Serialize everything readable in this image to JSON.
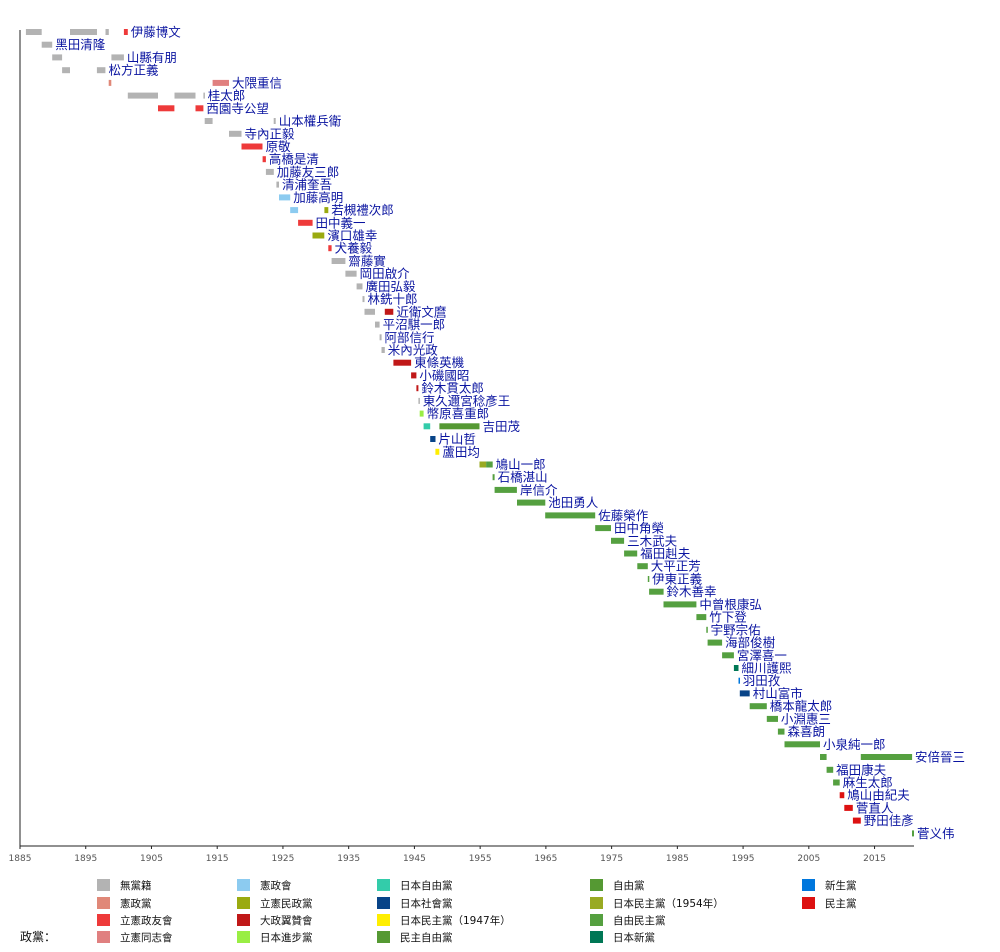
{
  "chart_data": {
    "type": "timeline",
    "x_range": [
      1885,
      2021
    ],
    "x_ticks": [
      "1885",
      "1895",
      "1905",
      "1915",
      "1925",
      "1935",
      "1945",
      "1955",
      "1965",
      "1975",
      "1985",
      "1995",
      "2005",
      "2015"
    ],
    "legend_title": "政黨：",
    "parties": [
      {
        "key": "none",
        "name": "無黨籍",
        "color": "#b3b3b3"
      },
      {
        "key": "kenseito",
        "name": "憲政黨",
        "color": "#e08878"
      },
      {
        "key": "seiyukai",
        "name": "立憲政友會",
        "color": "#ee3a3a"
      },
      {
        "key": "doshikai",
        "name": "立憲同志會",
        "color": "#e08080"
      },
      {
        "key": "kenseikai",
        "name": "憲政會",
        "color": "#8ccbf0"
      },
      {
        "key": "minseito",
        "name": "立憲民政黨",
        "color": "#9aaa10"
      },
      {
        "key": "taisei",
        "name": "大政翼贊會",
        "color": "#c01818"
      },
      {
        "key": "shimpo",
        "name": "日本進步黨",
        "color": "#99ee44"
      },
      {
        "key": "jiyu46",
        "name": "日本自由黨",
        "color": "#33ccaa"
      },
      {
        "key": "shakai",
        "name": "日本社會黨",
        "color": "#084488"
      },
      {
        "key": "minshu47",
        "name": "日本民主黨（1947年）",
        "color": "#ffee00"
      },
      {
        "key": "minjiyu",
        "name": "民主自由黨",
        "color": "#559933"
      },
      {
        "key": "jiyuto",
        "name": "自由黨",
        "color": "#559933"
      },
      {
        "key": "minshu54",
        "name": "日本民主黨（1954年）",
        "color": "#99aa22"
      },
      {
        "key": "ldp",
        "name": "自由民主黨",
        "color": "#55a040"
      },
      {
        "key": "shinto",
        "name": "日本新黨",
        "color": "#007755"
      },
      {
        "key": "shinsei",
        "name": "新生黨",
        "color": "#0077dd"
      },
      {
        "key": "dpj",
        "name": "民主黨",
        "color": "#dd1111"
      }
    ],
    "prime_ministers": [
      {
        "name": "伊藤博文",
        "terms": [
          {
            "start": 1885.9,
            "end": 1888.3,
            "party": "none"
          },
          {
            "start": 1892.6,
            "end": 1896.7,
            "party": "none"
          },
          {
            "start": 1898.0,
            "end": 1898.5,
            "party": "none"
          },
          {
            "start": 1900.8,
            "end": 1901.4,
            "party": "seiyukai"
          }
        ]
      },
      {
        "name": "黑田清隆",
        "terms": [
          {
            "start": 1888.3,
            "end": 1889.9,
            "party": "none"
          }
        ]
      },
      {
        "name": "山縣有朋",
        "terms": [
          {
            "start": 1889.9,
            "end": 1891.4,
            "party": "none"
          },
          {
            "start": 1898.9,
            "end": 1900.8,
            "party": "none"
          }
        ]
      },
      {
        "name": "松方正義",
        "terms": [
          {
            "start": 1891.4,
            "end": 1892.6,
            "party": "none"
          },
          {
            "start": 1896.7,
            "end": 1898.0,
            "party": "none"
          }
        ]
      },
      {
        "name": "大隈重信",
        "terms": [
          {
            "start": 1898.5,
            "end": 1898.9,
            "party": "kenseito"
          },
          {
            "start": 1914.3,
            "end": 1916.8,
            "party": "doshikai"
          }
        ]
      },
      {
        "name": "桂太郎",
        "terms": [
          {
            "start": 1901.4,
            "end": 1906.0,
            "party": "none"
          },
          {
            "start": 1908.5,
            "end": 1911.7,
            "party": "none"
          },
          {
            "start": 1912.9,
            "end": 1913.1,
            "party": "none"
          }
        ]
      },
      {
        "name": "西園寺公望",
        "terms": [
          {
            "start": 1906.0,
            "end": 1908.5,
            "party": "seiyukai"
          },
          {
            "start": 1911.7,
            "end": 1912.9,
            "party": "seiyukai"
          }
        ]
      },
      {
        "name": "山本權兵衛",
        "terms": [
          {
            "start": 1913.1,
            "end": 1914.3,
            "party": "none"
          },
          {
            "start": 1923.6,
            "end": 1923.9,
            "party": "none"
          }
        ]
      },
      {
        "name": "寺內正毅",
        "terms": [
          {
            "start": 1916.8,
            "end": 1918.7,
            "party": "none"
          }
        ]
      },
      {
        "name": "原敬",
        "terms": [
          {
            "start": 1918.7,
            "end": 1921.9,
            "party": "seiyukai"
          }
        ]
      },
      {
        "name": "高橋是清",
        "terms": [
          {
            "start": 1921.9,
            "end": 1922.4,
            "party": "seiyukai"
          }
        ]
      },
      {
        "name": "加藤友三郎",
        "terms": [
          {
            "start": 1922.4,
            "end": 1923.6,
            "party": "none"
          }
        ]
      },
      {
        "name": "清浦奎吾",
        "terms": [
          {
            "start": 1924.0,
            "end": 1924.4,
            "party": "none"
          }
        ]
      },
      {
        "name": "加藤高明",
        "terms": [
          {
            "start": 1924.4,
            "end": 1926.1,
            "party": "kenseikai"
          }
        ]
      },
      {
        "name": "若槻禮次郎",
        "terms": [
          {
            "start": 1926.1,
            "end": 1927.3,
            "party": "kenseikai"
          },
          {
            "start": 1931.3,
            "end": 1931.9,
            "party": "minseito"
          }
        ]
      },
      {
        "name": "田中義一",
        "terms": [
          {
            "start": 1927.3,
            "end": 1929.5,
            "party": "seiyukai"
          }
        ]
      },
      {
        "name": "濱口雄幸",
        "terms": [
          {
            "start": 1929.5,
            "end": 1931.3,
            "party": "minseito"
          }
        ]
      },
      {
        "name": "犬養毅",
        "terms": [
          {
            "start": 1931.9,
            "end": 1932.4,
            "party": "seiyukai"
          }
        ]
      },
      {
        "name": "齋藤實",
        "terms": [
          {
            "start": 1932.4,
            "end": 1934.5,
            "party": "none"
          }
        ]
      },
      {
        "name": "岡田啟介",
        "terms": [
          {
            "start": 1934.5,
            "end": 1936.2,
            "party": "none"
          }
        ]
      },
      {
        "name": "廣田弘毅",
        "terms": [
          {
            "start": 1936.2,
            "end": 1937.1,
            "party": "none"
          }
        ]
      },
      {
        "name": "林銑十郎",
        "terms": [
          {
            "start": 1937.1,
            "end": 1937.4,
            "party": "none"
          }
        ]
      },
      {
        "name": "近衛文麿",
        "terms": [
          {
            "start": 1937.4,
            "end": 1939.0,
            "party": "none"
          },
          {
            "start": 1940.5,
            "end": 1941.8,
            "party": "taisei"
          }
        ]
      },
      {
        "name": "平沼騏一郎",
        "terms": [
          {
            "start": 1939.0,
            "end": 1939.7,
            "party": "none"
          }
        ]
      },
      {
        "name": "阿部信行",
        "terms": [
          {
            "start": 1939.7,
            "end": 1940.0,
            "party": "none"
          }
        ]
      },
      {
        "name": "米內光政",
        "terms": [
          {
            "start": 1940.0,
            "end": 1940.5,
            "party": "none"
          }
        ]
      },
      {
        "name": "東條英機",
        "terms": [
          {
            "start": 1941.8,
            "end": 1944.5,
            "party": "taisei"
          }
        ]
      },
      {
        "name": "小磯國昭",
        "terms": [
          {
            "start": 1944.5,
            "end": 1945.3,
            "party": "taisei"
          }
        ]
      },
      {
        "name": "鈴木貫太郎",
        "terms": [
          {
            "start": 1945.3,
            "end": 1945.6,
            "party": "taisei"
          }
        ]
      },
      {
        "name": "東久邇宮稔彥王",
        "terms": [
          {
            "start": 1945.6,
            "end": 1945.8,
            "party": "none"
          }
        ]
      },
      {
        "name": "幣原喜重郎",
        "terms": [
          {
            "start": 1945.8,
            "end": 1946.4,
            "party": "shimpo"
          }
        ]
      },
      {
        "name": "吉田茂",
        "terms": [
          {
            "start": 1946.4,
            "end": 1947.4,
            "party": "jiyu46"
          },
          {
            "start": 1948.8,
            "end": 1954.9,
            "party": "minjiyu"
          }
        ]
      },
      {
        "name": "片山哲",
        "terms": [
          {
            "start": 1947.4,
            "end": 1948.2,
            "party": "shakai"
          }
        ]
      },
      {
        "name": "蘆田均",
        "terms": [
          {
            "start": 1948.2,
            "end": 1948.8,
            "party": "minshu47"
          }
        ]
      },
      {
        "name": "鳩山一郎",
        "terms": [
          {
            "start": 1954.9,
            "end": 1955.9,
            "party": "minshu54"
          },
          {
            "start": 1955.9,
            "end": 1956.9,
            "party": "ldp"
          }
        ]
      },
      {
        "name": "石橋湛山",
        "terms": [
          {
            "start": 1956.9,
            "end": 1957.2,
            "party": "ldp"
          }
        ]
      },
      {
        "name": "岸信介",
        "terms": [
          {
            "start": 1957.2,
            "end": 1960.6,
            "party": "ldp"
          }
        ]
      },
      {
        "name": "池田勇人",
        "terms": [
          {
            "start": 1960.6,
            "end": 1964.9,
            "party": "ldp"
          }
        ]
      },
      {
        "name": "佐藤榮作",
        "terms": [
          {
            "start": 1964.9,
            "end": 1972.5,
            "party": "ldp"
          }
        ]
      },
      {
        "name": "田中角榮",
        "terms": [
          {
            "start": 1972.5,
            "end": 1974.9,
            "party": "ldp"
          }
        ]
      },
      {
        "name": "三木武夫",
        "terms": [
          {
            "start": 1974.9,
            "end": 1976.9,
            "party": "ldp"
          }
        ]
      },
      {
        "name": "福田赳夫",
        "terms": [
          {
            "start": 1976.9,
            "end": 1978.9,
            "party": "ldp"
          }
        ]
      },
      {
        "name": "大平正芳",
        "terms": [
          {
            "start": 1978.9,
            "end": 1980.5,
            "party": "ldp"
          }
        ]
      },
      {
        "name": "伊東正義",
        "terms": [
          {
            "start": 1980.5,
            "end": 1980.7,
            "party": "ldp"
          }
        ]
      },
      {
        "name": "鈴木善幸",
        "terms": [
          {
            "start": 1980.7,
            "end": 1982.9,
            "party": "ldp"
          }
        ]
      },
      {
        "name": "中曾根康弘",
        "terms": [
          {
            "start": 1982.9,
            "end": 1987.9,
            "party": "ldp"
          }
        ]
      },
      {
        "name": "竹下登",
        "terms": [
          {
            "start": 1987.9,
            "end": 1989.4,
            "party": "ldp"
          }
        ]
      },
      {
        "name": "宇野宗佑",
        "terms": [
          {
            "start": 1989.4,
            "end": 1989.6,
            "party": "ldp"
          }
        ]
      },
      {
        "name": "海部俊樹",
        "terms": [
          {
            "start": 1989.6,
            "end": 1991.8,
            "party": "ldp"
          }
        ]
      },
      {
        "name": "宮澤喜一",
        "terms": [
          {
            "start": 1991.8,
            "end": 1993.6,
            "party": "ldp"
          }
        ]
      },
      {
        "name": "細川護熙",
        "terms": [
          {
            "start": 1993.6,
            "end": 1994.3,
            "party": "shinto"
          }
        ]
      },
      {
        "name": "羽田孜",
        "terms": [
          {
            "start": 1994.3,
            "end": 1994.5,
            "party": "shinsei"
          }
        ]
      },
      {
        "name": "村山富市",
        "terms": [
          {
            "start": 1994.5,
            "end": 1996.0,
            "party": "shakai"
          }
        ]
      },
      {
        "name": "橋本龍太郎",
        "terms": [
          {
            "start": 1996.0,
            "end": 1998.6,
            "party": "ldp"
          }
        ]
      },
      {
        "name": "小淵惠三",
        "terms": [
          {
            "start": 1998.6,
            "end": 2000.3,
            "party": "ldp"
          }
        ]
      },
      {
        "name": "森喜朗",
        "terms": [
          {
            "start": 2000.3,
            "end": 2001.3,
            "party": "ldp"
          }
        ]
      },
      {
        "name": "小泉純一郎",
        "terms": [
          {
            "start": 2001.3,
            "end": 2006.7,
            "party": "ldp"
          }
        ]
      },
      {
        "name": "安倍晉三",
        "terms": [
          {
            "start": 2006.7,
            "end": 2007.7,
            "party": "ldp"
          },
          {
            "start": 2012.9,
            "end": 2020.7,
            "party": "ldp"
          }
        ]
      },
      {
        "name": "福田康夫",
        "terms": [
          {
            "start": 2007.7,
            "end": 2008.7,
            "party": "ldp"
          }
        ]
      },
      {
        "name": "麻生太郎",
        "terms": [
          {
            "start": 2008.7,
            "end": 2009.7,
            "party": "ldp"
          }
        ]
      },
      {
        "name": "鳩山由紀夫",
        "terms": [
          {
            "start": 2009.7,
            "end": 2010.4,
            "party": "dpj"
          }
        ]
      },
      {
        "name": "菅直人",
        "terms": [
          {
            "start": 2010.4,
            "end": 2011.7,
            "party": "dpj"
          }
        ]
      },
      {
        "name": "野田佳彥",
        "terms": [
          {
            "start": 2011.7,
            "end": 2012.9,
            "party": "dpj"
          }
        ]
      },
      {
        "name": "菅义伟",
        "terms": [
          {
            "start": 2020.7,
            "end": 2021.0,
            "party": "ldp"
          }
        ]
      }
    ]
  }
}
